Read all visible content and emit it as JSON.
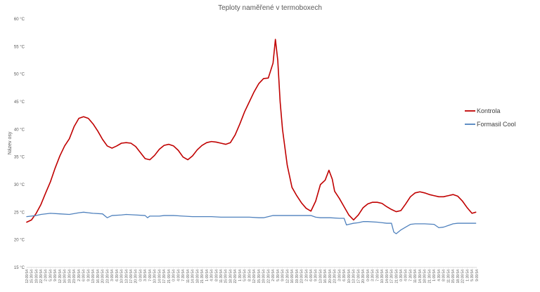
{
  "chart_data": {
    "type": "line",
    "title": "Teploty naměřené v termoboxech",
    "ylabel": "Název osy",
    "xlabel": "",
    "ylim": [
      15,
      60
    ],
    "yticks": [
      15,
      20,
      25,
      30,
      35,
      40,
      45,
      50,
      55,
      60
    ],
    "ytick_suffix": " °C",
    "grid": "off",
    "legend_position": "right",
    "x_tick_labels": [
      "12:09:54",
      "15:39:54",
      "19:09:54",
      "22:39:54",
      "2:09:54",
      "5:39:54",
      "9:09:54",
      "12:39:54",
      "16:09:54",
      "19:39:54",
      "23:09:54",
      "2:39:54",
      "6:09:54",
      "9:39:54",
      "13:09:54",
      "16:39:54",
      "20:09:54",
      "23:39:54",
      "3:09:54",
      "6:39:54",
      "10:09:54",
      "13:39:54",
      "17:09:54",
      "20:39:54",
      "0:09:54",
      "3:39:54",
      "7:09:54",
      "10:39:54",
      "14:09:54",
      "17:39:54",
      "21:09:54",
      "0:39:54",
      "4:09:54",
      "7:39:54",
      "11:09:54",
      "14:39:54",
      "18:09:54",
      "21:39:54",
      "1:09:54",
      "4:39:54",
      "8:09:54",
      "11:39:54",
      "15:09:54",
      "18:39:54",
      "22:09:54",
      "1:39:54",
      "5:09:54",
      "8:39:54",
      "12:09:54",
      "15:39:54",
      "19:09:54",
      "22:39:54",
      "2:09:54",
      "5:39:54",
      "9:09:54",
      "12:39:54",
      "16:09:54",
      "19:39:54",
      "23:09:54",
      "2:39:54",
      "6:09:54",
      "9:39:54",
      "13:09:54",
      "16:39:54",
      "20:09:54",
      "23:39:54",
      "3:09:54",
      "6:39:54",
      "10:09:54",
      "13:39:54",
      "17:09:54",
      "20:39:54",
      "0:09:54",
      "3:39:54",
      "7:09:54",
      "10:39:54",
      "14:09:54",
      "17:39:54",
      "21:09:54",
      "0:39:54",
      "4:09:54",
      "7:39:54",
      "11:09:54",
      "14:39:54",
      "18:09:54",
      "21:39:54",
      "1:09:54",
      "4:39:54",
      "8:09:54",
      "11:39:54",
      "15:09:54",
      "18:39:54",
      "22:09:54",
      "1:39:54",
      "5:39:54",
      "9:09:54"
    ],
    "series": [
      {
        "name": "Kontrola",
        "color": "#c00000",
        "points": [
          [
            0,
            23.2
          ],
          [
            1,
            23.6
          ],
          [
            2,
            24.8
          ],
          [
            3,
            26.4
          ],
          [
            4,
            28.5
          ],
          [
            5,
            30.5
          ],
          [
            6,
            33.0
          ],
          [
            7,
            35.2
          ],
          [
            8,
            37.0
          ],
          [
            9,
            38.3
          ],
          [
            10,
            40.5
          ],
          [
            11,
            42.0
          ],
          [
            12,
            42.3
          ],
          [
            13,
            42.0
          ],
          [
            14,
            41.0
          ],
          [
            15,
            39.7
          ],
          [
            16,
            38.2
          ],
          [
            17,
            37.0
          ],
          [
            18,
            36.6
          ],
          [
            19,
            37.0
          ],
          [
            20,
            37.5
          ],
          [
            21,
            37.6
          ],
          [
            22,
            37.5
          ],
          [
            23,
            36.9
          ],
          [
            24,
            35.8
          ],
          [
            25,
            34.7
          ],
          [
            26,
            34.5
          ],
          [
            27,
            35.3
          ],
          [
            28,
            36.4
          ],
          [
            29,
            37.1
          ],
          [
            30,
            37.3
          ],
          [
            31,
            37.0
          ],
          [
            32,
            36.2
          ],
          [
            33,
            35.0
          ],
          [
            34,
            34.5
          ],
          [
            35,
            35.2
          ],
          [
            36,
            36.3
          ],
          [
            37,
            37.1
          ],
          [
            38,
            37.6
          ],
          [
            39,
            37.8
          ],
          [
            40,
            37.7
          ],
          [
            41,
            37.5
          ],
          [
            42,
            37.3
          ],
          [
            43,
            37.6
          ],
          [
            44,
            39.0
          ],
          [
            45,
            41.0
          ],
          [
            46,
            43.2
          ],
          [
            47,
            45.0
          ],
          [
            48,
            46.8
          ],
          [
            49,
            48.3
          ],
          [
            50,
            49.2
          ],
          [
            51,
            49.3
          ],
          [
            52,
            52.0
          ],
          [
            52.5,
            56.3
          ],
          [
            53,
            52.5
          ],
          [
            53.5,
            45.0
          ],
          [
            54,
            40.0
          ],
          [
            55,
            33.5
          ],
          [
            56,
            29.5
          ],
          [
            57,
            28.0
          ],
          [
            58,
            26.7
          ],
          [
            59,
            25.7
          ],
          [
            60,
            25.2
          ],
          [
            61,
            27.0
          ],
          [
            62,
            30.0
          ],
          [
            63,
            30.8
          ],
          [
            63.8,
            32.6
          ],
          [
            64.5,
            31.0
          ],
          [
            65,
            28.8
          ],
          [
            66,
            27.5
          ],
          [
            67,
            26.0
          ],
          [
            68,
            24.5
          ],
          [
            69,
            23.6
          ],
          [
            70,
            24.5
          ],
          [
            71,
            25.8
          ],
          [
            72,
            26.5
          ],
          [
            73,
            26.8
          ],
          [
            74,
            26.8
          ],
          [
            75,
            26.6
          ],
          [
            76,
            26.0
          ],
          [
            77,
            25.5
          ],
          [
            78,
            25.1
          ],
          [
            79,
            25.3
          ],
          [
            80,
            26.5
          ],
          [
            81,
            27.8
          ],
          [
            82,
            28.5
          ],
          [
            83,
            28.7
          ],
          [
            84,
            28.5
          ],
          [
            85,
            28.2
          ],
          [
            86,
            28.0
          ],
          [
            87,
            27.8
          ],
          [
            88,
            27.8
          ],
          [
            89,
            28.0
          ],
          [
            90,
            28.2
          ],
          [
            91,
            27.9
          ],
          [
            92,
            27.0
          ],
          [
            93,
            25.8
          ],
          [
            94,
            24.8
          ],
          [
            94.8,
            25.0
          ]
        ]
      },
      {
        "name": "Formasil Cool",
        "color": "#4f81bd",
        "points": [
          [
            0,
            24.2
          ],
          [
            2,
            24.4
          ],
          [
            3,
            24.6
          ],
          [
            5,
            24.8
          ],
          [
            7,
            24.7
          ],
          [
            9,
            24.6
          ],
          [
            11,
            24.9
          ],
          [
            12,
            25.0
          ],
          [
            14,
            24.8
          ],
          [
            16,
            24.7
          ],
          [
            17,
            24.0
          ],
          [
            18,
            24.4
          ],
          [
            20,
            24.5
          ],
          [
            21,
            24.6
          ],
          [
            23,
            24.5
          ],
          [
            25,
            24.4
          ],
          [
            25.5,
            24.0
          ],
          [
            26,
            24.3
          ],
          [
            28,
            24.3
          ],
          [
            29,
            24.4
          ],
          [
            31,
            24.4
          ],
          [
            33,
            24.3
          ],
          [
            35,
            24.2
          ],
          [
            37,
            24.2
          ],
          [
            39,
            24.2
          ],
          [
            41,
            24.1
          ],
          [
            43,
            24.1
          ],
          [
            45,
            24.1
          ],
          [
            47,
            24.1
          ],
          [
            49,
            24.0
          ],
          [
            50,
            24.0
          ],
          [
            51,
            24.2
          ],
          [
            52,
            24.4
          ],
          [
            54,
            24.4
          ],
          [
            56,
            24.4
          ],
          [
            58,
            24.4
          ],
          [
            60,
            24.4
          ],
          [
            61,
            24.1
          ],
          [
            62,
            24.0
          ],
          [
            64,
            24.0
          ],
          [
            66,
            23.9
          ],
          [
            67,
            23.9
          ],
          [
            67.5,
            22.7
          ],
          [
            68,
            22.8
          ],
          [
            69,
            23.0
          ],
          [
            70,
            23.1
          ],
          [
            71,
            23.3
          ],
          [
            72,
            23.3
          ],
          [
            74,
            23.2
          ],
          [
            75,
            23.1
          ],
          [
            76,
            23.0
          ],
          [
            77,
            23.0
          ],
          [
            77.5,
            21.4
          ],
          [
            78,
            21.1
          ],
          [
            79,
            21.8
          ],
          [
            80,
            22.3
          ],
          [
            81,
            22.8
          ],
          [
            82,
            22.9
          ],
          [
            84,
            22.9
          ],
          [
            86,
            22.8
          ],
          [
            87,
            22.2
          ],
          [
            88,
            22.3
          ],
          [
            89,
            22.6
          ],
          [
            90,
            22.9
          ],
          [
            91,
            23.0
          ],
          [
            93,
            23.0
          ],
          [
            94.8,
            23.0
          ]
        ]
      }
    ]
  }
}
